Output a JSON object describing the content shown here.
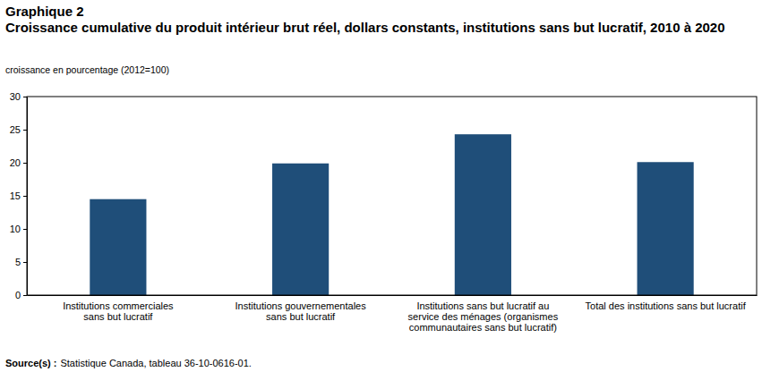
{
  "chart_data": {
    "type": "bar",
    "figure_label": "Graphique 2",
    "title": "Croissance cumulative du produit intérieur brut réel, dollars constants, institutions sans but lucratif, 2010 à 2020",
    "y_label": "croissance en pourcentage (2012=100)",
    "categories": [
      "Institutions commerciales sans but lucratif",
      "Institutions gouvernementales sans but lucratif",
      "Institutions sans but lucratif au service des ménages (organismes communautaires sans but lucratif)",
      "Total des institutions sans but lucratif"
    ],
    "values": [
      14.5,
      19.9,
      24.3,
      20.1
    ],
    "color": "#1f4e79",
    "ylim": [
      0,
      30
    ],
    "yticks": [
      0,
      5,
      10,
      15,
      20,
      25,
      30
    ],
    "grid": false,
    "source_label": "Source(s) :",
    "source": "Statistique Canada, tableau 36-10-0616-01."
  }
}
